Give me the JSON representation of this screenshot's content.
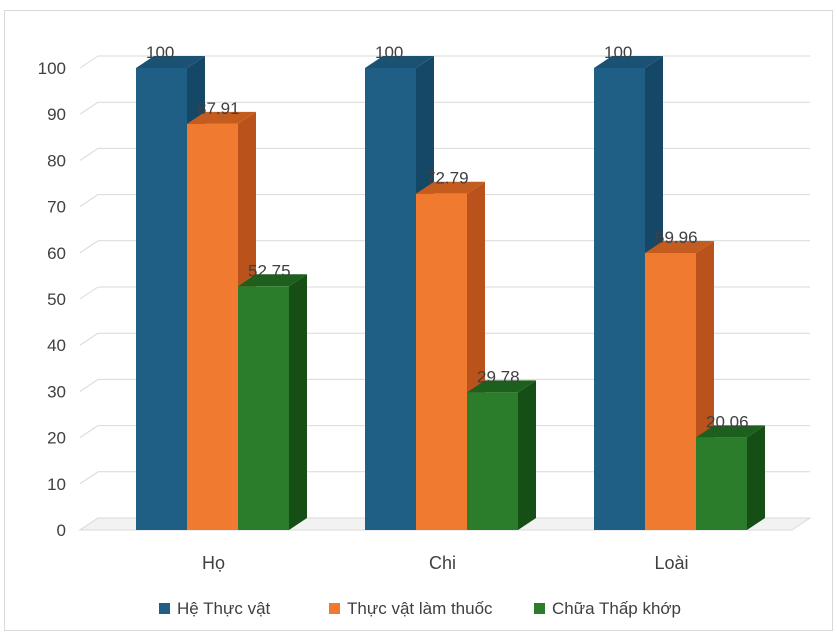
{
  "chart_data": {
    "type": "bar",
    "style": "3d-clustered-column",
    "categories": [
      "Họ",
      "Chi",
      "Loài"
    ],
    "series": [
      {
        "name": "Hệ Thực vật",
        "values": [
          100,
          100,
          100
        ],
        "color": "#1f5f86",
        "side_color": "#154866",
        "top_color": "#1b5273"
      },
      {
        "name": "Thực vật làm thuốc",
        "values": [
          87.91,
          72.79,
          59.96
        ],
        "color": "#f07a30",
        "side_color": "#b9531b",
        "top_color": "#c45c20"
      },
      {
        "name": "Chữa Thấp khớp",
        "values": [
          52.75,
          29.78,
          20.06
        ],
        "color": "#2b7d2b",
        "side_color": "#164f16",
        "top_color": "#1d5f1d"
      }
    ],
    "data_labels": {
      "Họ": [
        "100",
        "87.91",
        "52.75"
      ],
      "Chi": [
        "100",
        "72.79",
        "29.78"
      ],
      "Loài": [
        "100",
        "59.96",
        "20.06"
      ]
    },
    "y_ticks": [
      "0",
      "10",
      "20",
      "30",
      "40",
      "50",
      "60",
      "70",
      "80",
      "90",
      "100"
    ],
    "ylim": [
      0,
      100
    ],
    "grid": true,
    "legend_position": "bottom",
    "title": "",
    "xlabel": "",
    "ylabel": ""
  }
}
